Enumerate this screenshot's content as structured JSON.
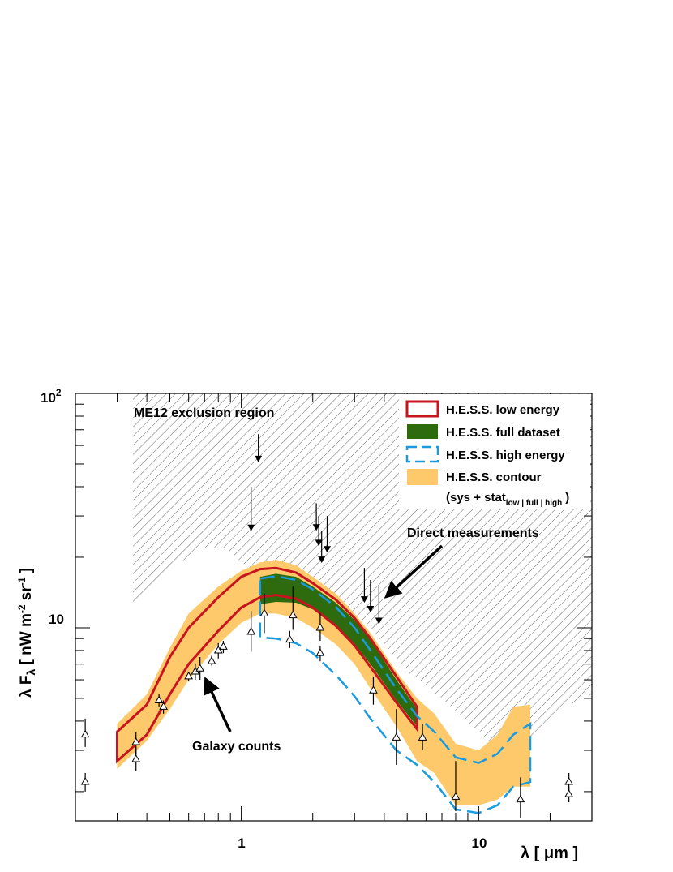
{
  "chart_data": {
    "type": "scatter",
    "title": "",
    "xlabel": "λ [ μm ]",
    "ylabel": "λ F_λ [ nW m^-2 sr^-1 ]",
    "x_scale": "log",
    "y_scale": "log",
    "xlim": [
      0.2,
      30
    ],
    "ylim": [
      1.5,
      100
    ],
    "x_tick_labels": [
      "1",
      "10"
    ],
    "y_tick_labels": [
      {
        "base": "10",
        "exp": "2",
        "value": 100
      },
      {
        "base": "10",
        "exp": "",
        "value": 10
      }
    ],
    "legend": {
      "position": "top-right",
      "entries": [
        {
          "label": "H.E.S.S. low energy",
          "style": "red-outline",
          "color": "#c8141e"
        },
        {
          "label": "H.E.S.S. full dataset",
          "style": "green-fill",
          "color": "#2e6b0e"
        },
        {
          "label": "H.E.S.S. high energy",
          "style": "blue-dashed",
          "color": "#1a9be0"
        },
        {
          "label": "H.E.S.S. contour",
          "style": "orange-fill",
          "color": "#fdc96a"
        },
        {
          "label": "(sys + stat",
          "sub": "low | full | high",
          "close": ")"
        }
      ]
    },
    "annotations": {
      "exclusion": "ME12 exclusion region",
      "direct": "Direct measurements",
      "galaxy": "Galaxy counts"
    },
    "series": [
      {
        "name": "ME12 exclusion region (lower boundary)",
        "x": [
          0.35,
          0.38,
          0.45,
          0.55,
          0.7,
          0.85,
          1.0,
          1.2,
          1.5,
          2.0,
          2.5,
          3.5,
          5.0,
          7.0,
          10.0,
          13.0,
          17.0,
          22.0,
          30.0
        ],
        "y": [
          12,
          13,
          15.5,
          19,
          22,
          22,
          19,
          17,
          15,
          14,
          12.5,
          10,
          6.5,
          5.0,
          3.6,
          2.8,
          3.5,
          4.5,
          5.2
        ]
      },
      {
        "name": "H.E.S.S. contour (upper)",
        "x": [
          0.3,
          0.4,
          0.5,
          0.6,
          0.8,
          1.0,
          1.2,
          1.4,
          1.7,
          2.0,
          2.5,
          3.0,
          3.5,
          4.5,
          5.5,
          6.5,
          8.0,
          10.0,
          12.0,
          14.0,
          16.5
        ],
        "y": [
          3.9,
          5.2,
          8.2,
          11.5,
          15,
          17.5,
          19,
          19.5,
          18.5,
          16.5,
          14,
          11.5,
          9.5,
          6.5,
          5.0,
          4.3,
          3.2,
          3.0,
          3.5,
          4.6,
          4.7
        ]
      },
      {
        "name": "H.E.S.S. contour (lower)",
        "x": [
          0.3,
          0.4,
          0.5,
          0.6,
          0.8,
          1.0,
          1.2,
          1.4,
          1.7,
          2.0,
          2.5,
          3.0,
          3.5,
          4.5,
          5.5,
          6.5,
          8.0,
          10.0,
          12.0,
          14.0,
          16.5
        ],
        "y": [
          2.5,
          3.3,
          4.5,
          6.0,
          8.5,
          10.5,
          11.5,
          11.5,
          11.0,
          10.0,
          8.5,
          7.0,
          5.5,
          3.8,
          2.7,
          2.4,
          1.75,
          1.75,
          1.85,
          2.1,
          2.1
        ]
      },
      {
        "name": "H.E.S.S. low energy (upper)",
        "x": [
          0.3,
          0.4,
          0.5,
          0.6,
          0.8,
          1.0,
          1.2,
          1.4,
          1.7,
          2.0,
          2.5,
          3.0,
          3.5,
          4.5,
          5.5
        ],
        "y": [
          3.6,
          4.7,
          7.5,
          10.0,
          13.5,
          16.5,
          17.8,
          18.0,
          17.2,
          15.5,
          13.2,
          11.0,
          9.0,
          6.2,
          4.6
        ]
      },
      {
        "name": "H.E.S.S. low energy (lower)",
        "x": [
          0.3,
          0.4,
          0.5,
          0.6,
          0.8,
          1.0,
          1.2,
          1.4,
          1.7,
          2.0,
          2.5,
          3.0,
          3.5,
          4.5,
          5.5
        ],
        "y": [
          2.7,
          3.5,
          5.2,
          7.0,
          9.7,
          12.2,
          13.5,
          13.8,
          13.3,
          12.2,
          10.2,
          8.4,
          6.8,
          4.8,
          3.7
        ]
      },
      {
        "name": "H.E.S.S. full dataset (upper)",
        "x": [
          1.2,
          1.4,
          1.7,
          2.0,
          2.5,
          3.0,
          3.5,
          4.5,
          5.5
        ],
        "y": [
          16.5,
          17.0,
          16.5,
          15.0,
          12.8,
          10.8,
          8.9,
          6.0,
          4.5
        ]
      },
      {
        "name": "H.E.S.S. full dataset (lower)",
        "x": [
          1.2,
          1.4,
          1.7,
          2.0,
          2.5,
          3.0,
          3.5,
          4.5,
          5.5
        ],
        "y": [
          12.6,
          12.9,
          12.8,
          12.0,
          10.2,
          8.5,
          7.0,
          4.9,
          3.8
        ]
      },
      {
        "name": "H.E.S.S. high energy (upper)",
        "x": [
          1.2,
          1.4,
          1.7,
          2.0,
          2.5,
          3.0,
          3.5,
          4.5,
          5.5,
          6.5,
          8.0,
          10.0,
          12.0,
          14.0,
          16.5
        ],
        "y": [
          16.2,
          16.6,
          16.0,
          14.6,
          12.3,
          10.0,
          8.0,
          5.5,
          4.2,
          3.6,
          2.8,
          2.65,
          2.9,
          3.5,
          3.9
        ]
      },
      {
        "name": "H.E.S.S. high energy (lower)",
        "x": [
          1.2,
          1.4,
          1.7,
          2.0,
          2.5,
          3.0,
          3.5,
          4.5,
          5.5,
          6.5,
          8.0,
          10.0,
          12.0,
          14.0,
          16.5
        ],
        "y": [
          9.1,
          9.0,
          8.6,
          7.8,
          6.3,
          5.1,
          4.1,
          3.0,
          2.6,
          2.2,
          1.68,
          1.62,
          1.75,
          2.1,
          2.2
        ]
      },
      {
        "name": "Direct measurements (upper limits)",
        "points": [
          {
            "x": 1.1,
            "y": 26.7,
            "err_up": 40
          },
          {
            "x": 1.18,
            "y": 52.5,
            "err_up": 67
          },
          {
            "x": 2.07,
            "y": 26.8,
            "err_up": 34
          },
          {
            "x": 2.12,
            "y": 23.0,
            "err_up": 30
          },
          {
            "x": 2.18,
            "y": 19.5,
            "err_up": 26
          },
          {
            "x": 2.3,
            "y": 21.6,
            "err_up": 30
          },
          {
            "x": 3.3,
            "y": 13.2,
            "err_up": 18
          },
          {
            "x": 3.5,
            "y": 12.0,
            "err_up": 16
          },
          {
            "x": 3.8,
            "y": 10.7,
            "err_up": 15
          }
        ]
      },
      {
        "name": "Galaxy counts / lower limits",
        "points": [
          {
            "x": 0.22,
            "y": 2.2,
            "err_lo": 2.0,
            "err_hi": 2.4
          },
          {
            "x": 0.22,
            "y": 3.5,
            "err_lo": 3.1,
            "err_hi": 4.1
          },
          {
            "x": 0.36,
            "y": 2.75,
            "err_lo": 2.45,
            "err_hi": 3.1
          },
          {
            "x": 0.36,
            "y": 3.25,
            "err_lo": 2.9,
            "err_hi": 3.6
          },
          {
            "x": 0.45,
            "y": 4.9,
            "err_lo": 4.6,
            "err_hi": 5.2
          },
          {
            "x": 0.47,
            "y": 4.6,
            "err_lo": 4.3,
            "err_hi": 4.9
          },
          {
            "x": 0.6,
            "y": 6.2,
            "err_lo": 5.9,
            "err_hi": 6.5
          },
          {
            "x": 0.64,
            "y": 6.5,
            "err_lo": 6.0,
            "err_hi": 7.0
          },
          {
            "x": 0.67,
            "y": 6.7,
            "err_lo": 6.0,
            "err_hi": 7.5
          },
          {
            "x": 0.75,
            "y": 7.2,
            "err_lo": 6.9,
            "err_hi": 7.6
          },
          {
            "x": 0.8,
            "y": 8.0,
            "err_lo": 7.4,
            "err_hi": 8.6
          },
          {
            "x": 0.84,
            "y": 8.3,
            "err_lo": 7.8,
            "err_hi": 8.8
          },
          {
            "x": 1.1,
            "y": 9.6,
            "err_lo": 7.9,
            "err_hi": 11.8
          },
          {
            "x": 1.25,
            "y": 11.5,
            "err_lo": 9.5,
            "err_hi": 14.0
          },
          {
            "x": 1.6,
            "y": 8.9,
            "err_lo": 8.2,
            "err_hi": 9.7
          },
          {
            "x": 1.65,
            "y": 11.3,
            "err_lo": 9.8,
            "err_hi": 15.0
          },
          {
            "x": 2.15,
            "y": 7.8,
            "err_lo": 7.2,
            "err_hi": 8.4
          },
          {
            "x": 2.15,
            "y": 10.0,
            "err_lo": 8.8,
            "err_hi": 11.5
          },
          {
            "x": 3.6,
            "y": 5.4,
            "err_lo": 4.7,
            "err_hi": 6.2
          },
          {
            "x": 4.5,
            "y": 3.4,
            "err_lo": 2.6,
            "err_hi": 4.5
          },
          {
            "x": 5.8,
            "y": 3.4,
            "err_lo": 3.0,
            "err_hi": 3.9
          },
          {
            "x": 8.0,
            "y": 1.9,
            "err_lo": 1.65,
            "err_hi": 2.7
          },
          {
            "x": 15.0,
            "y": 1.85,
            "err_lo": 1.55,
            "err_hi": 2.3
          },
          {
            "x": 24.0,
            "y": 2.2,
            "err_lo": 2.0,
            "err_hi": 2.4
          },
          {
            "x": 24.0,
            "y": 1.95,
            "err_lo": 1.8,
            "err_hi": 2.1
          }
        ]
      }
    ]
  }
}
